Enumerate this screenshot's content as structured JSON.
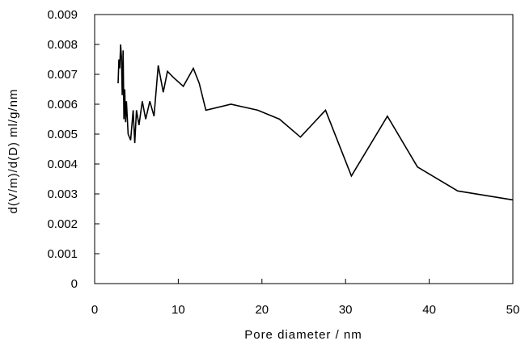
{
  "chart_data": {
    "type": "line",
    "title": "",
    "xlabel": "Pore diameter / nm",
    "ylabel": "d(V/m)/d(D)  ml/g/nm",
    "xlim": [
      0,
      50
    ],
    "ylim": [
      0,
      0.009
    ],
    "x_ticks": [
      "0",
      "10",
      "20",
      "30",
      "40",
      "50"
    ],
    "y_ticks": [
      "0",
      "0.001",
      "0.002",
      "0.003",
      "0.004",
      "0.005",
      "0.006",
      "0.007",
      "0.008",
      "0.009"
    ],
    "grid": false,
    "legend": "none",
    "line_color": "#000000",
    "series": [
      {
        "x": [
          2.8,
          2.9,
          3.0,
          3.1,
          3.2,
          3.3,
          3.4,
          3.5,
          3.6,
          3.7,
          3.8,
          4.0,
          4.3,
          4.6,
          4.8,
          5.0,
          5.3,
          5.7,
          6.1,
          6.6,
          7.1,
          7.6,
          8.2,
          8.7,
          9.4,
          10.6,
          11.8,
          12.5,
          13.3,
          16.3,
          19.5,
          22.1,
          24.6,
          27.6,
          30.7,
          35.0,
          38.6,
          43.4,
          50.0
        ],
        "y": [
          0.0067,
          0.0075,
          0.0072,
          0.008,
          0.0076,
          0.0063,
          0.0078,
          0.0055,
          0.0065,
          0.0054,
          0.0061,
          0.005,
          0.0048,
          0.0058,
          0.0047,
          0.0058,
          0.0053,
          0.0061,
          0.0055,
          0.0061,
          0.0056,
          0.0073,
          0.0064,
          0.0071,
          0.0069,
          0.0066,
          0.0072,
          0.0067,
          0.0058,
          0.006,
          0.0058,
          0.0055,
          0.0049,
          0.0058,
          0.0036,
          0.0056,
          0.0039,
          0.0031,
          0.0028
        ]
      }
    ]
  }
}
